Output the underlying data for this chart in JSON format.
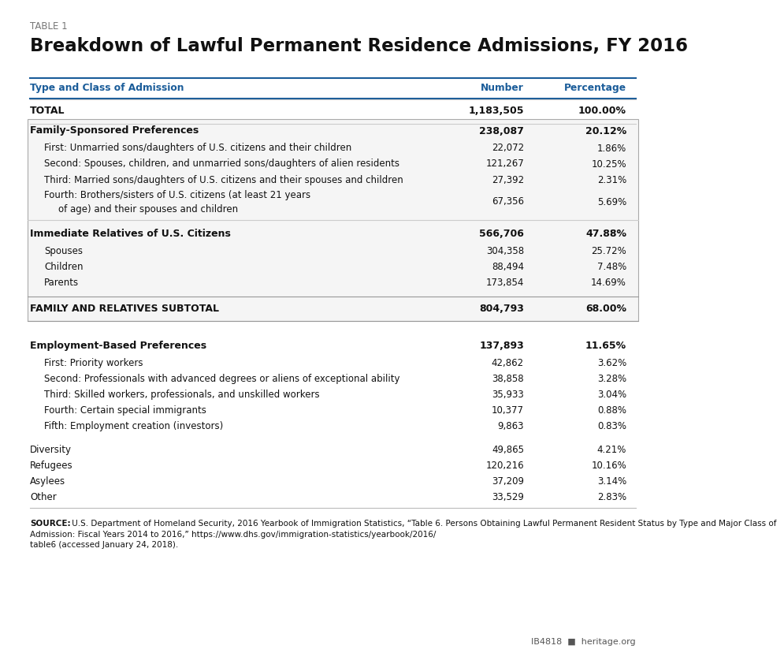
{
  "table_label": "TABLE 1",
  "title": "Breakdown of Lawful Permanent Residence Admissions, FY 2016",
  "col_header_left": "Type and Class of Admission",
  "col_header_num": "Number",
  "col_header_pct": "Percentage",
  "rows": [
    {
      "label": "TOTAL",
      "number": "1,183,505",
      "pct": "100.00%",
      "style": "total",
      "indent": 0,
      "multiline": false
    },
    {
      "label": "Family-Sponsored Preferences",
      "number": "238,087",
      "pct": "20.12%",
      "style": "section_header",
      "indent": 0,
      "multiline": false
    },
    {
      "label": "First: Unmarried sons/daughters of U.S. citizens and their children",
      "number": "22,072",
      "pct": "1.86%",
      "style": "normal",
      "indent": 1,
      "multiline": false
    },
    {
      "label": "Second: Spouses, children, and unmarried sons/daughters of alien residents",
      "number": "121,267",
      "pct": "10.25%",
      "style": "normal",
      "indent": 1,
      "multiline": false
    },
    {
      "label": "Third: Married sons/daughters of U.S. citizens and their spouses and children",
      "number": "27,392",
      "pct": "2.31%",
      "style": "normal",
      "indent": 1,
      "multiline": false
    },
    {
      "label": "Fourth: Brothers/sisters of U.S. citizens (at least 21 years\nof age) and their spouses and children",
      "number": "67,356",
      "pct": "5.69%",
      "style": "normal",
      "indent": 1,
      "multiline": true
    },
    {
      "label": "Immediate Relatives of U.S. Citizens",
      "number": "566,706",
      "pct": "47.88%",
      "style": "section_header",
      "indent": 0,
      "multiline": false
    },
    {
      "label": "Spouses",
      "number": "304,358",
      "pct": "25.72%",
      "style": "normal",
      "indent": 1,
      "multiline": false
    },
    {
      "label": "Children",
      "number": "88,494",
      "pct": "7.48%",
      "style": "normal",
      "indent": 1,
      "multiline": false
    },
    {
      "label": "Parents",
      "number": "173,854",
      "pct": "14.69%",
      "style": "normal",
      "indent": 1,
      "multiline": false
    },
    {
      "label": "FAMILY AND RELATIVES SUBTOTAL",
      "number": "804,793",
      "pct": "68.00%",
      "style": "subtotal",
      "indent": 0,
      "multiline": false
    },
    {
      "label": "Employment-Based Preferences",
      "number": "137,893",
      "pct": "11.65%",
      "style": "section_header",
      "indent": 0,
      "multiline": false
    },
    {
      "label": "First: Priority workers",
      "number": "42,862",
      "pct": "3.62%",
      "style": "normal",
      "indent": 1,
      "multiline": false
    },
    {
      "label": "Second: Professionals with advanced degrees or aliens of exceptional ability",
      "number": "38,858",
      "pct": "3.28%",
      "style": "normal",
      "indent": 1,
      "multiline": false
    },
    {
      "label": "Third: Skilled workers, professionals, and unskilled workers",
      "number": "35,933",
      "pct": "3.04%",
      "style": "normal",
      "indent": 1,
      "multiline": false
    },
    {
      "label": "Fourth: Certain special immigrants",
      "number": "10,377",
      "pct": "0.88%",
      "style": "normal",
      "indent": 1,
      "multiline": false
    },
    {
      "label": "Fifth: Employment creation (investors)",
      "number": "9,863",
      "pct": "0.83%",
      "style": "normal",
      "indent": 1,
      "multiline": false
    },
    {
      "label": "Diversity",
      "number": "49,865",
      "pct": "4.21%",
      "style": "normal",
      "indent": 0,
      "multiline": false
    },
    {
      "label": "Refugees",
      "number": "120,216",
      "pct": "10.16%",
      "style": "normal",
      "indent": 0,
      "multiline": false
    },
    {
      "label": "Asylees",
      "number": "37,209",
      "pct": "3.14%",
      "style": "normal",
      "indent": 0,
      "multiline": false
    },
    {
      "label": "Other",
      "number": "33,529",
      "pct": "2.83%",
      "style": "normal",
      "indent": 0,
      "multiline": false
    }
  ],
  "source_bold": "SOURCE:",
  "source_normal": " U.S. Department of Homeland Security, ",
  "source_italic": "2016 Yearbook of Immigration Statistics",
  "source_end": ", “Table 6. Persons Obtaining Lawful Permanent Resident Status by Type and Major Class of Admission: Fiscal Years 2014 to 2016,” https://www.dhs.gov/immigration-statistics/yearbook/2016/table6 (accessed January 24, 2018).",
  "footer_id": "IB4818",
  "footer_site": "heritage.org",
  "header_color": "#1a5c99",
  "box_border_color": "#aaaaaa",
  "box_fill_color": "#f5f5f5",
  "line_color": "#bbbbbb",
  "text_dark": "#111111",
  "text_gray": "#777777"
}
